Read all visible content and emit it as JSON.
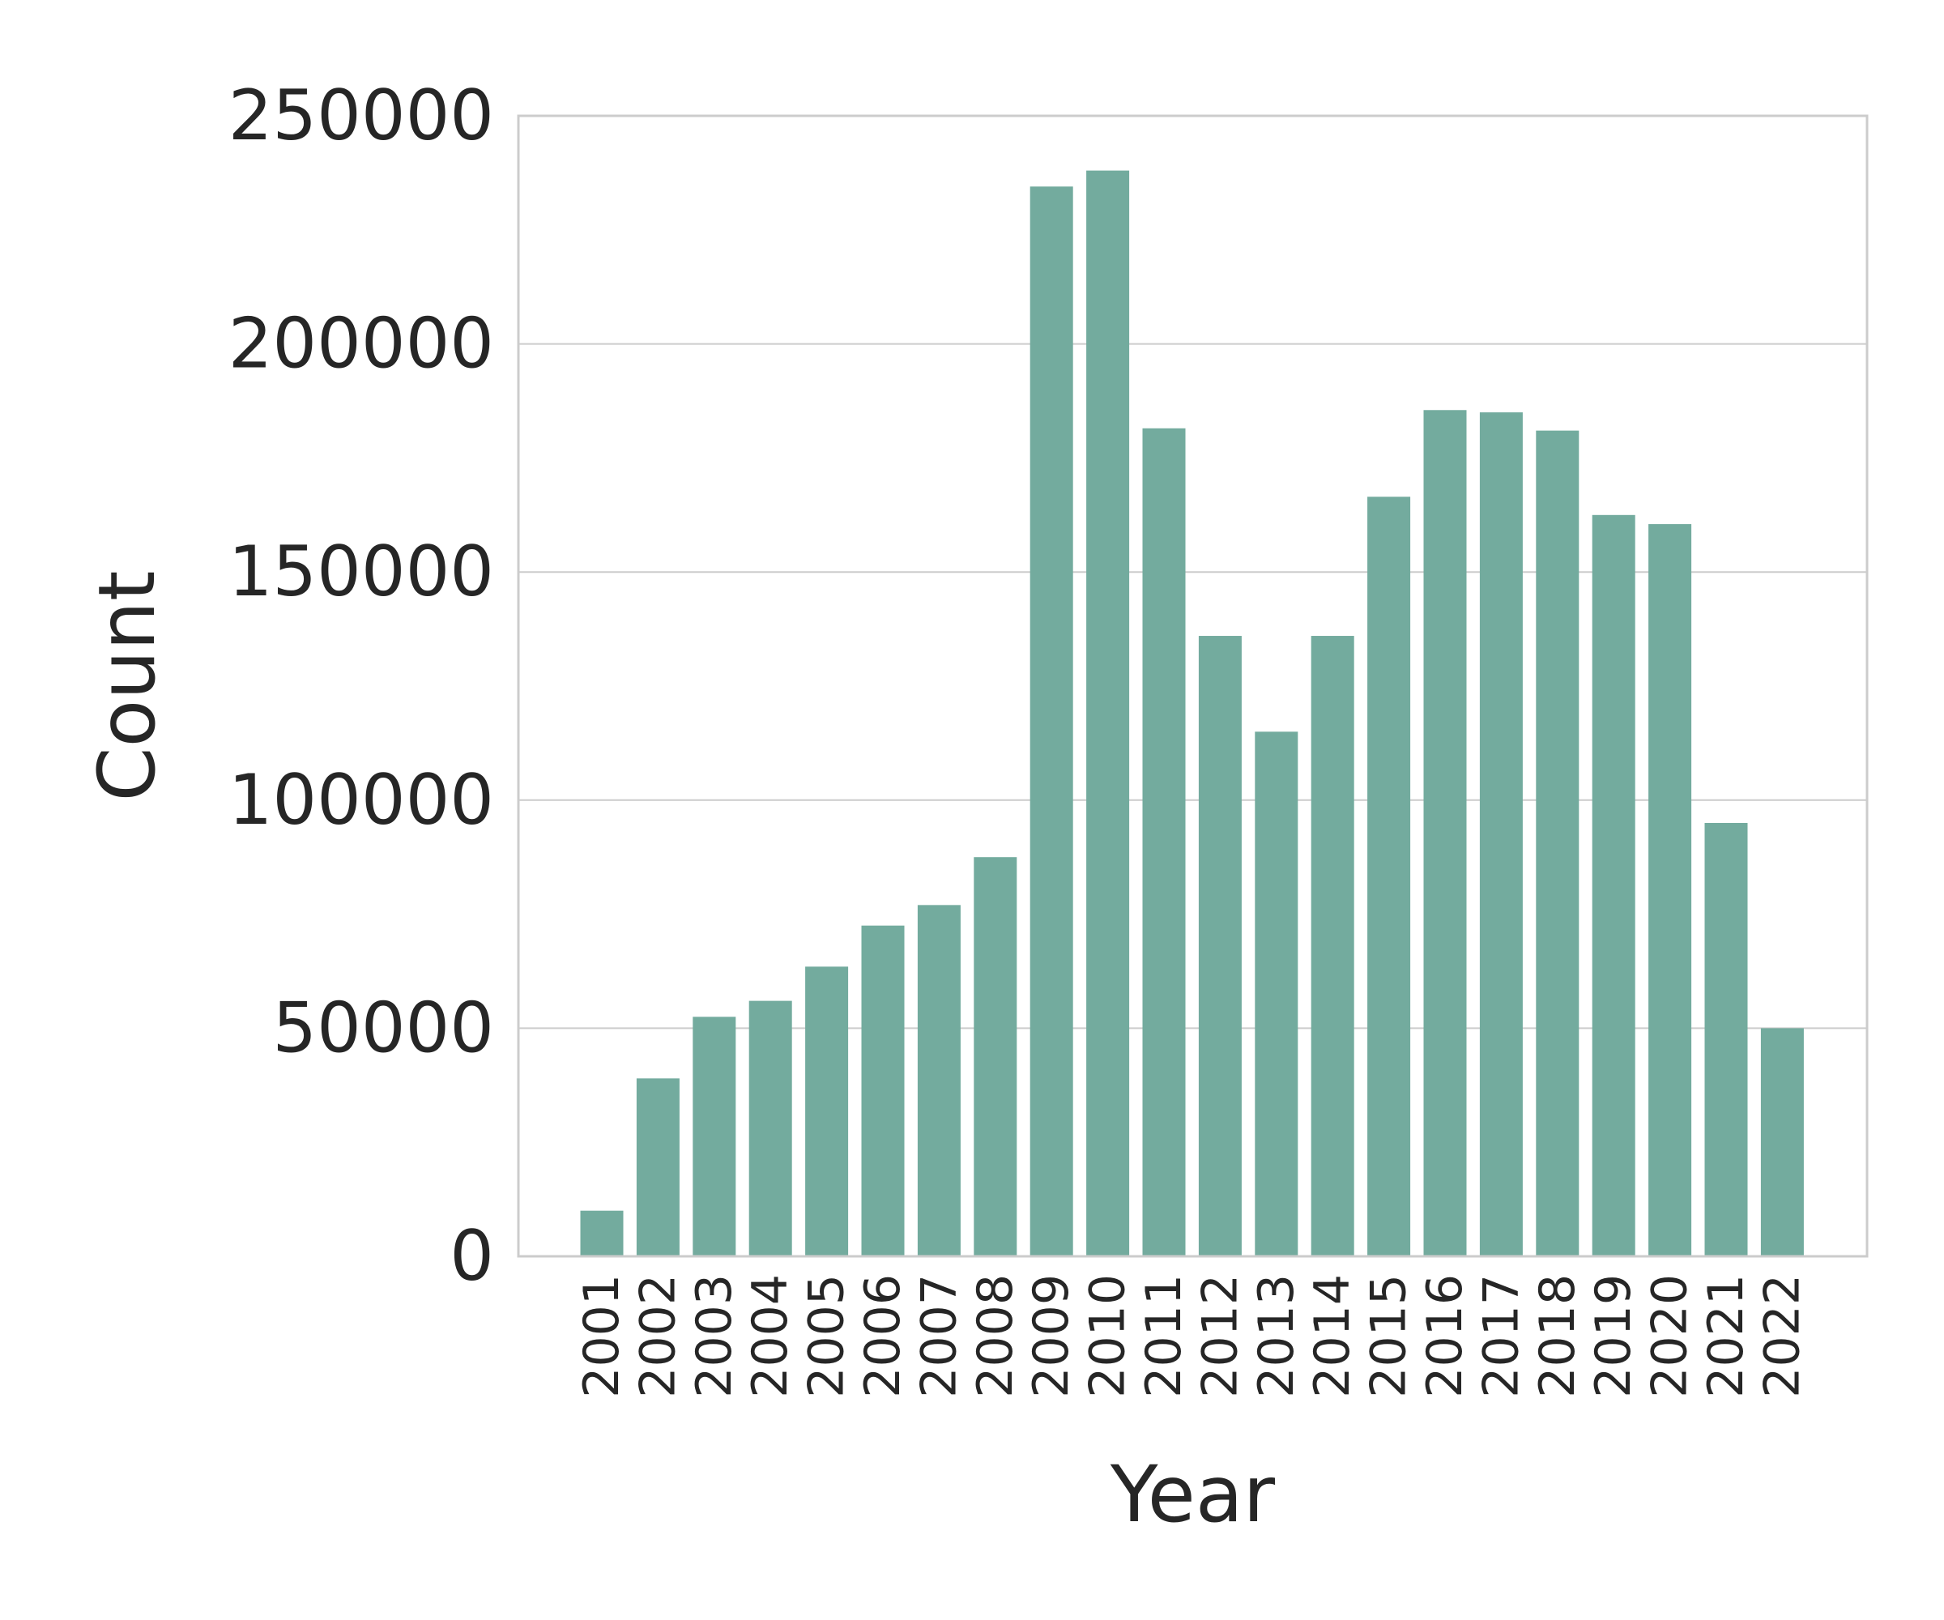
{
  "chart_data": {
    "type": "bar",
    "xlabel": "Year",
    "ylabel": "Count",
    "categories": [
      "2001",
      "2002",
      "2003",
      "2004",
      "2005",
      "2006",
      "2007",
      "2008",
      "2009",
      "2010",
      "2011",
      "2012",
      "2013",
      "2014",
      "2015",
      "2016",
      "2017",
      "2018",
      "2019",
      "2020",
      "2021",
      "2022"
    ],
    "values": [
      10000,
      39000,
      52500,
      56000,
      63500,
      72500,
      77000,
      87500,
      234500,
      238000,
      181500,
      136000,
      115000,
      136000,
      166500,
      185500,
      185000,
      181000,
      162500,
      160500,
      95000,
      50000
    ],
    "ylim": [
      0,
      250000
    ],
    "yticks": [
      "0",
      "50000",
      "100000",
      "150000",
      "200000",
      "250000"
    ],
    "grid": "horizontal",
    "bar_color": "#73ab9e"
  }
}
